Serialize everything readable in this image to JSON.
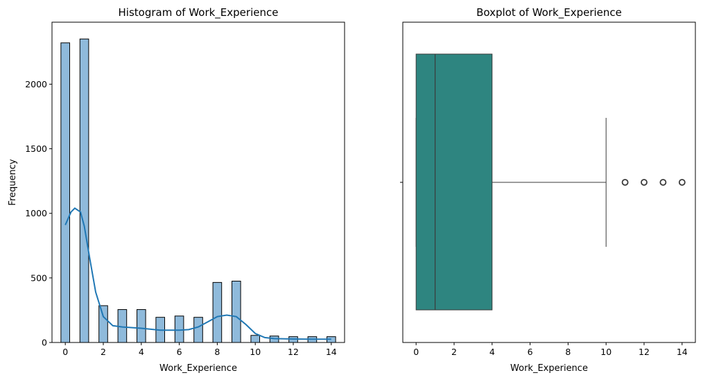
{
  "chart_data": [
    {
      "type": "bar",
      "title": "Histogram of Work_Experience",
      "xlabel": "Work_Experience",
      "ylabel": "Frequency",
      "xlim": [
        -0.7,
        14.7
      ],
      "ylim": [
        0,
        2480
      ],
      "xticks": [
        0,
        2,
        4,
        6,
        8,
        10,
        12,
        14
      ],
      "yticks": [
        0,
        500,
        1000,
        1500,
        2000
      ],
      "bar_color": "#8fbadb",
      "kde_color": "#1f77b4",
      "bars": [
        {
          "x": 0,
          "value": 2320
        },
        {
          "x": 1,
          "value": 2350
        },
        {
          "x": 2,
          "value": 285
        },
        {
          "x": 3,
          "value": 255
        },
        {
          "x": 4,
          "value": 255
        },
        {
          "x": 5,
          "value": 195
        },
        {
          "x": 6,
          "value": 205
        },
        {
          "x": 7,
          "value": 195
        },
        {
          "x": 8,
          "value": 465
        },
        {
          "x": 9,
          "value": 475
        },
        {
          "x": 10,
          "value": 55
        },
        {
          "x": 11,
          "value": 50
        },
        {
          "x": 12,
          "value": 45
        },
        {
          "x": 13,
          "value": 45
        },
        {
          "x": 14,
          "value": 45
        }
      ],
      "kde": {
        "x": [
          0,
          0.3,
          0.5,
          0.8,
          1.0,
          1.3,
          1.6,
          2.0,
          2.5,
          3.0,
          4.0,
          5.0,
          6.0,
          6.5,
          7.0,
          7.5,
          8.0,
          8.5,
          9.0,
          9.5,
          10.0,
          10.5,
          11.0,
          12.0,
          13.0,
          14.0
        ],
        "y": [
          910,
          1010,
          1040,
          1010,
          900,
          640,
          390,
          200,
          130,
          120,
          110,
          95,
          95,
          100,
          120,
          160,
          200,
          212,
          200,
          140,
          70,
          38,
          30,
          27,
          25,
          25
        ]
      }
    },
    {
      "type": "boxplot",
      "title": "Boxplot of Work_Experience",
      "xlabel": "Work_Experience",
      "xlim": [
        -0.7,
        14.7
      ],
      "xticks": [
        0,
        2,
        4,
        6,
        8,
        10,
        12,
        14
      ],
      "box_color": "#2e8580",
      "min": 0,
      "q1": 0,
      "median": 1,
      "q3": 4,
      "max": 10,
      "outliers": [
        11,
        12,
        13,
        14
      ]
    }
  ]
}
